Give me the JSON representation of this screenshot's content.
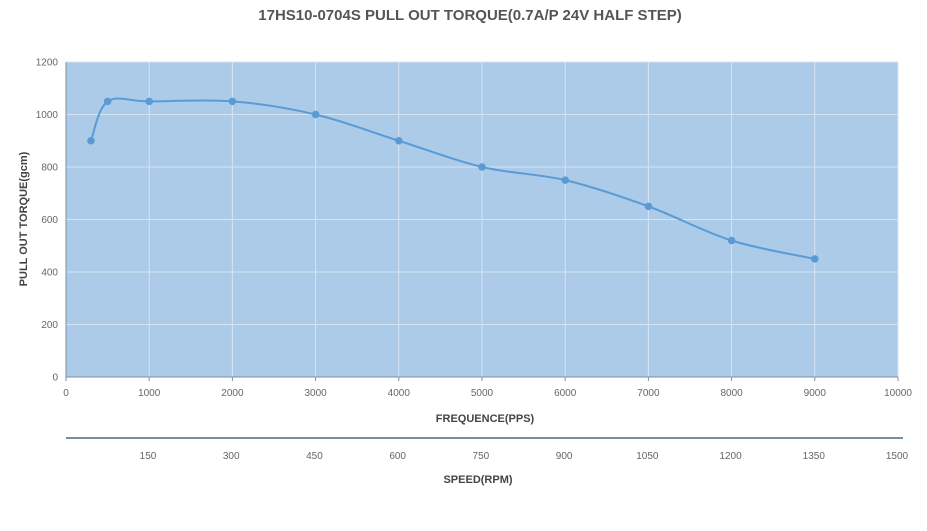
{
  "chart_data": {
    "type": "line",
    "title": "17HS10-0704S PULL OUT TORQUE(0.7A/P 24V   HALF  STEP)",
    "xlabel": "FREQUENCE(PPS)",
    "ylabel": "PULL OUT TORQUE(gcm)",
    "secondary_xlabel": "SPEED(RPM)",
    "xlim": [
      0,
      10000
    ],
    "ylim": [
      0,
      1200
    ],
    "x_ticks": [
      "0",
      "1000",
      "2000",
      "3000",
      "4000",
      "5000",
      "6000",
      "7000",
      "8000",
      "9000",
      "10000"
    ],
    "y_ticks": [
      "0",
      "200",
      "400",
      "600",
      "800",
      "1000",
      "1200"
    ],
    "secondary_x_ticks": [
      "150",
      "300",
      "450",
      "600",
      "750",
      "900",
      "1050",
      "1200",
      "1350",
      "1500"
    ],
    "grid": true,
    "series": [
      {
        "x": [
          300,
          500,
          1000,
          2000,
          3000,
          4000,
          5000,
          6000,
          7000,
          8000,
          9000
        ],
        "y": [
          900,
          1050,
          1050,
          1050,
          1000,
          900,
          800,
          750,
          650,
          520,
          450
        ]
      }
    ],
    "colors": {
      "plot_bg": "#abcbe9",
      "line": "#5b9bd5",
      "grid": "#d6e4f2",
      "axis": "#7f8fa0",
      "secondary_axis": "#4a6a82"
    }
  }
}
